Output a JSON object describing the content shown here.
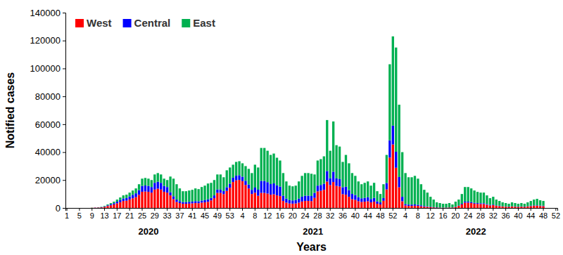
{
  "chart_data": {
    "type": "bar",
    "stacked": true,
    "grid": false,
    "legend": "top-left",
    "x_label": "Years",
    "y_label": "Notified cases",
    "ylim": [
      0,
      140000
    ],
    "yticks": [
      0,
      20000,
      40000,
      60000,
      80000,
      100000,
      120000,
      140000
    ],
    "x_groups": [
      {
        "label": "2020",
        "from": 0,
        "to": 52
      },
      {
        "label": "2021",
        "from": 53,
        "to": 104
      },
      {
        "label": "2022",
        "from": 105,
        "to": 156
      }
    ],
    "categories": [
      "1",
      null,
      null,
      null,
      "5",
      null,
      null,
      null,
      "9",
      null,
      null,
      null,
      "13",
      null,
      null,
      null,
      "17",
      null,
      null,
      null,
      "21",
      null,
      null,
      null,
      "25",
      null,
      null,
      null,
      "29",
      null,
      null,
      null,
      "33",
      null,
      null,
      null,
      "37",
      null,
      null,
      null,
      "41",
      null,
      null,
      null,
      "45",
      null,
      null,
      null,
      "49",
      null,
      null,
      null,
      "53",
      null,
      null,
      null,
      "4",
      null,
      null,
      null,
      "8",
      null,
      null,
      null,
      "12",
      null,
      null,
      null,
      "16",
      null,
      null,
      null,
      "20",
      null,
      null,
      null,
      "24",
      null,
      null,
      null,
      "28",
      null,
      null,
      null,
      "32",
      null,
      null,
      null,
      "36",
      null,
      null,
      null,
      "40",
      null,
      null,
      null,
      "44",
      null,
      null,
      null,
      "48",
      null,
      null,
      null,
      "52",
      null,
      null,
      null,
      "4",
      null,
      null,
      null,
      "8",
      null,
      null,
      null,
      "12",
      null,
      null,
      null,
      "16",
      null,
      null,
      null,
      "20",
      null,
      null,
      null,
      "24",
      null,
      null,
      null,
      "28",
      null,
      null,
      null,
      "32",
      null,
      null,
      null,
      "36",
      null,
      null,
      null,
      "40",
      null,
      null,
      null,
      "44",
      null,
      null,
      null,
      "48",
      null,
      null,
      null,
      "52"
    ],
    "series": [
      {
        "name": "West",
        "color": "#ff0000",
        "values": [
          0,
          0,
          0,
          0,
          0,
          0,
          0,
          0,
          100,
          200,
          300,
          400,
          800,
          1400,
          1900,
          2500,
          3300,
          4100,
          5000,
          5200,
          6100,
          6900,
          7700,
          9400,
          11600,
          11800,
          11600,
          11000,
          13200,
          13800,
          13200,
          11600,
          11000,
          9000,
          6300,
          4300,
          3500,
          3000,
          3000,
          3100,
          3300,
          3500,
          3400,
          3800,
          4000,
          4400,
          5400,
          7000,
          10800,
          10800,
          9900,
          12200,
          14500,
          18600,
          19800,
          20100,
          19200,
          16500,
          14000,
          10000,
          10900,
          8700,
          10800,
          10800,
          10300,
          9500,
          9800,
          9000,
          8500,
          5000,
          3800,
          3200,
          3100,
          3200,
          3800,
          4600,
          5000,
          5000,
          4900,
          7200,
          11900,
          12300,
          13000,
          18900,
          16400,
          18600,
          15800,
          15400,
          9900,
          9500,
          8000,
          6300,
          5800,
          4800,
          4300,
          4500,
          4800,
          4000,
          4500,
          3000,
          2500,
          5100,
          13300,
          36100,
          45500,
          28800,
          14800,
          4800,
          1800,
          1500,
          1500,
          1600,
          1500,
          1200,
          900,
          800,
          600,
          400,
          300,
          200,
          200,
          200,
          300,
          300,
          700,
          1500,
          2500,
          3800,
          3800,
          3500,
          3100,
          2900,
          2800,
          2800,
          2300,
          1800,
          2000,
          1500,
          1300,
          1000,
          900,
          800,
          1000,
          900,
          800,
          900,
          800,
          1000,
          1300,
          1500,
          1600,
          1400,
          1300,
          0,
          0,
          0,
          0
        ]
      },
      {
        "name": "Central",
        "color": "#0000ff",
        "values": [
          0,
          0,
          0,
          0,
          0,
          0,
          0,
          0,
          0,
          100,
          100,
          200,
          300,
          500,
          700,
          900,
          1200,
          1500,
          1800,
          1900,
          2200,
          2500,
          2800,
          3400,
          4200,
          4300,
          4200,
          4000,
          4800,
          5000,
          4800,
          4200,
          4000,
          2300,
          2100,
          1700,
          1400,
          1200,
          1200,
          1300,
          1300,
          1400,
          1400,
          1500,
          1600,
          1800,
          1800,
          2000,
          2400,
          2400,
          2200,
          2700,
          2900,
          3100,
          3300,
          3400,
          3200,
          3000,
          2800,
          3000,
          3700,
          4400,
          8600,
          8600,
          8200,
          7600,
          7800,
          7200,
          6800,
          3800,
          2900,
          2400,
          2300,
          2400,
          2900,
          3500,
          3800,
          3800,
          3700,
          3600,
          4100,
          4200,
          4400,
          7600,
          4900,
          7400,
          5400,
          5300,
          5000,
          5700,
          4800,
          3800,
          3500,
          2900,
          2600,
          2700,
          2900,
          2400,
          2700,
          1800,
          1500,
          2000,
          4600,
          12400,
          13500,
          11500,
          7400,
          3200,
          1000,
          900,
          900,
          900,
          800,
          700,
          500,
          400,
          300,
          200,
          200,
          100,
          100,
          100,
          100,
          100,
          200,
          300,
          500,
          800,
          800,
          700,
          600,
          600,
          600,
          600,
          500,
          400,
          400,
          300,
          300,
          200,
          200,
          200,
          200,
          200,
          200,
          200,
          200,
          200,
          300,
          300,
          300,
          300,
          300,
          0,
          0,
          0,
          0
        ]
      },
      {
        "name": "East",
        "color": "#00b050",
        "values": [
          0,
          0,
          0,
          0,
          0,
          0,
          0,
          0,
          100,
          0,
          100,
          200,
          400,
          600,
          900,
          1100,
          1500,
          1900,
          2200,
          2400,
          2700,
          3100,
          3500,
          4200,
          5200,
          5400,
          5200,
          5000,
          6000,
          6200,
          6000,
          5200,
          5000,
          11200,
          12600,
          11000,
          9100,
          7800,
          7800,
          8100,
          8400,
          9100,
          8700,
          9700,
          10400,
          11300,
          10800,
          11000,
          10800,
          10800,
          9900,
          12100,
          11600,
          9300,
          9900,
          10000,
          9600,
          10500,
          11200,
          12000,
          16400,
          15900,
          23600,
          23600,
          22500,
          20900,
          21400,
          19800,
          18700,
          16200,
          12300,
          10400,
          10100,
          10400,
          12300,
          14900,
          16200,
          16200,
          15900,
          13200,
          18000,
          18500,
          19600,
          36500,
          19700,
          36000,
          23800,
          23300,
          18100,
          22800,
          19200,
          14900,
          13700,
          11300,
          10100,
          10800,
          11300,
          9600,
          10800,
          7200,
          6000,
          9900,
          20100,
          54500,
          64000,
          74700,
          51800,
          32000,
          22200,
          19600,
          19600,
          20500,
          18700,
          15100,
          11600,
          9800,
          7100,
          5400,
          3500,
          3200,
          2700,
          2700,
          3100,
          2100,
          3600,
          4200,
          7000,
          10400,
          10400,
          9800,
          8800,
          8000,
          7600,
          7600,
          6200,
          4800,
          5600,
          4200,
          3400,
          2800,
          2400,
          2000,
          2800,
          2400,
          2000,
          2400,
          2000,
          2800,
          3400,
          4200,
          4600,
          3800,
          3400,
          0,
          0,
          0,
          0
        ]
      }
    ]
  }
}
